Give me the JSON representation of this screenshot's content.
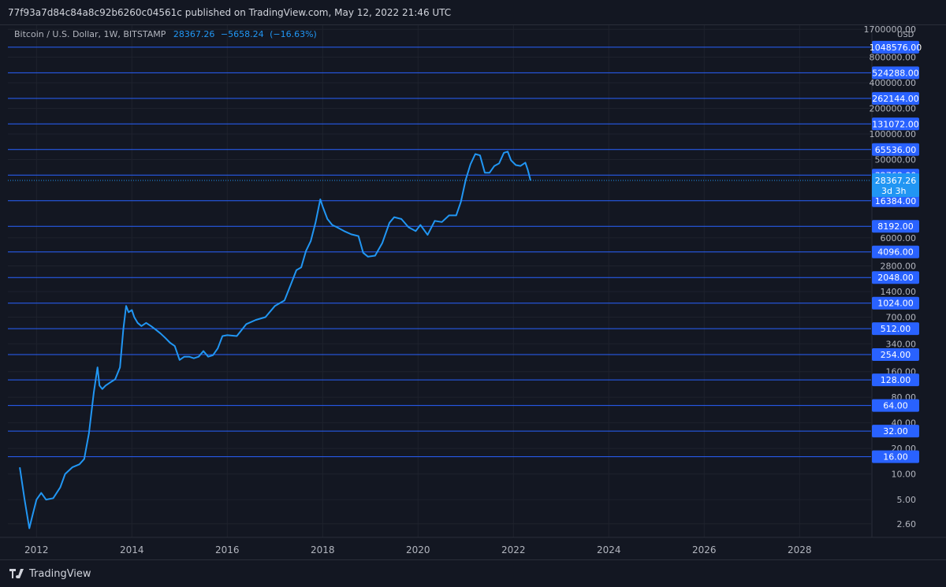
{
  "header": {
    "text": "77f93a7d84c84a8c92b6260c04561c published on TradingView.com, May 12, 2022 21:46 UTC"
  },
  "legend": {
    "symbol": "Bitcoin / U.S. Dollar, 1W, BITSTAMP",
    "last": "28367.26",
    "change": "−5658.24",
    "change_pct": "(−16.63%)"
  },
  "footer": {
    "brand": "TradingView"
  },
  "colors": {
    "background": "#131722",
    "line": "#2196f3",
    "hline": "#2962ff",
    "label_bg": "#2962ff",
    "grid": "#1e222d",
    "text": "#b2b5be"
  },
  "chart_data": {
    "type": "line",
    "yscale": "log",
    "currency": "USD",
    "ylim": [
      1.8,
      1900000
    ],
    "xlim": [
      2011.4,
      2029.5
    ],
    "x_ticks": [
      "2012",
      "2014",
      "2016",
      "2018",
      "2020",
      "2022",
      "2024",
      "2026",
      "2028"
    ],
    "y_tick_labels": [
      "1700000.00",
      "800000.00",
      "400000.00",
      "200000.00",
      "100000.00",
      "50000.00",
      "6000.00",
      "2800.00",
      "1400.00",
      "700.00",
      "340.00",
      "160.00",
      "80.00",
      "40.00",
      "20.00",
      "10.00",
      "5.00",
      "2.60"
    ],
    "horizontal_levels": [
      "1048576.00",
      "524288.00",
      "262144.00",
      "131072.00",
      "65536.00",
      "32768.00",
      "16384.00",
      "8192.00",
      "4096.00",
      "2048.00",
      "1024.00",
      "512.00",
      "254.00",
      "128.00",
      "64.00",
      "32.00",
      "16.00"
    ],
    "last_price": {
      "value": "28367.26",
      "countdown": "3d 3h"
    },
    "series": [
      {
        "x": [
          2011.65,
          2011.75,
          2011.85,
          2011.9,
          2012.0,
          2012.1,
          2012.2,
          2012.35,
          2012.5,
          2012.6,
          2012.75,
          2012.9,
          2013.0,
          2013.1,
          2013.2,
          2013.28,
          2013.32,
          2013.38,
          2013.45,
          2013.55,
          2013.65,
          2013.75,
          2013.82,
          2013.88,
          2013.93,
          2014.0,
          2014.05,
          2014.12,
          2014.2,
          2014.3,
          2014.4,
          2014.5,
          2014.6,
          2014.7,
          2014.8,
          2014.9,
          2015.0,
          2015.1,
          2015.2,
          2015.3,
          2015.4,
          2015.5,
          2015.6,
          2015.7,
          2015.8,
          2015.9,
          2016.0,
          2016.2,
          2016.4,
          2016.6,
          2016.8,
          2017.0,
          2017.2,
          2017.35,
          2017.45,
          2017.55,
          2017.65,
          2017.75,
          2017.85,
          2017.95,
          2018.0,
          2018.1,
          2018.2,
          2018.3,
          2018.45,
          2018.6,
          2018.75,
          2018.85,
          2018.95,
          2019.1,
          2019.25,
          2019.4,
          2019.5,
          2019.65,
          2019.8,
          2019.95,
          2020.05,
          2020.2,
          2020.35,
          2020.5,
          2020.65,
          2020.8,
          2020.9,
          2021.0,
          2021.1,
          2021.2,
          2021.3,
          2021.4,
          2021.5,
          2021.6,
          2021.7,
          2021.8,
          2021.88,
          2021.95,
          2022.05,
          2022.15,
          2022.25,
          2022.3,
          2022.36
        ],
        "y": [
          12,
          5,
          2.3,
          3,
          5,
          6,
          5,
          5.2,
          7,
          10,
          12,
          13,
          15,
          30,
          90,
          180,
          110,
          100,
          110,
          120,
          130,
          180,
          500,
          950,
          800,
          850,
          700,
          600,
          550,
          600,
          550,
          500,
          450,
          400,
          350,
          320,
          220,
          240,
          240,
          230,
          240,
          280,
          240,
          250,
          300,
          420,
          430,
          420,
          580,
          650,
          700,
          950,
          1100,
          1800,
          2500,
          2700,
          4200,
          5500,
          9000,
          17000,
          14000,
          10000,
          8500,
          8000,
          7200,
          6600,
          6300,
          4000,
          3600,
          3700,
          5200,
          9000,
          10500,
          10000,
          8000,
          7200,
          8500,
          6500,
          9500,
          9200,
          11000,
          11000,
          16000,
          29000,
          44000,
          58000,
          56000,
          35000,
          35000,
          42000,
          45000,
          60000,
          62000,
          49000,
          43000,
          42000,
          46000,
          38000,
          28367
        ]
      }
    ]
  }
}
